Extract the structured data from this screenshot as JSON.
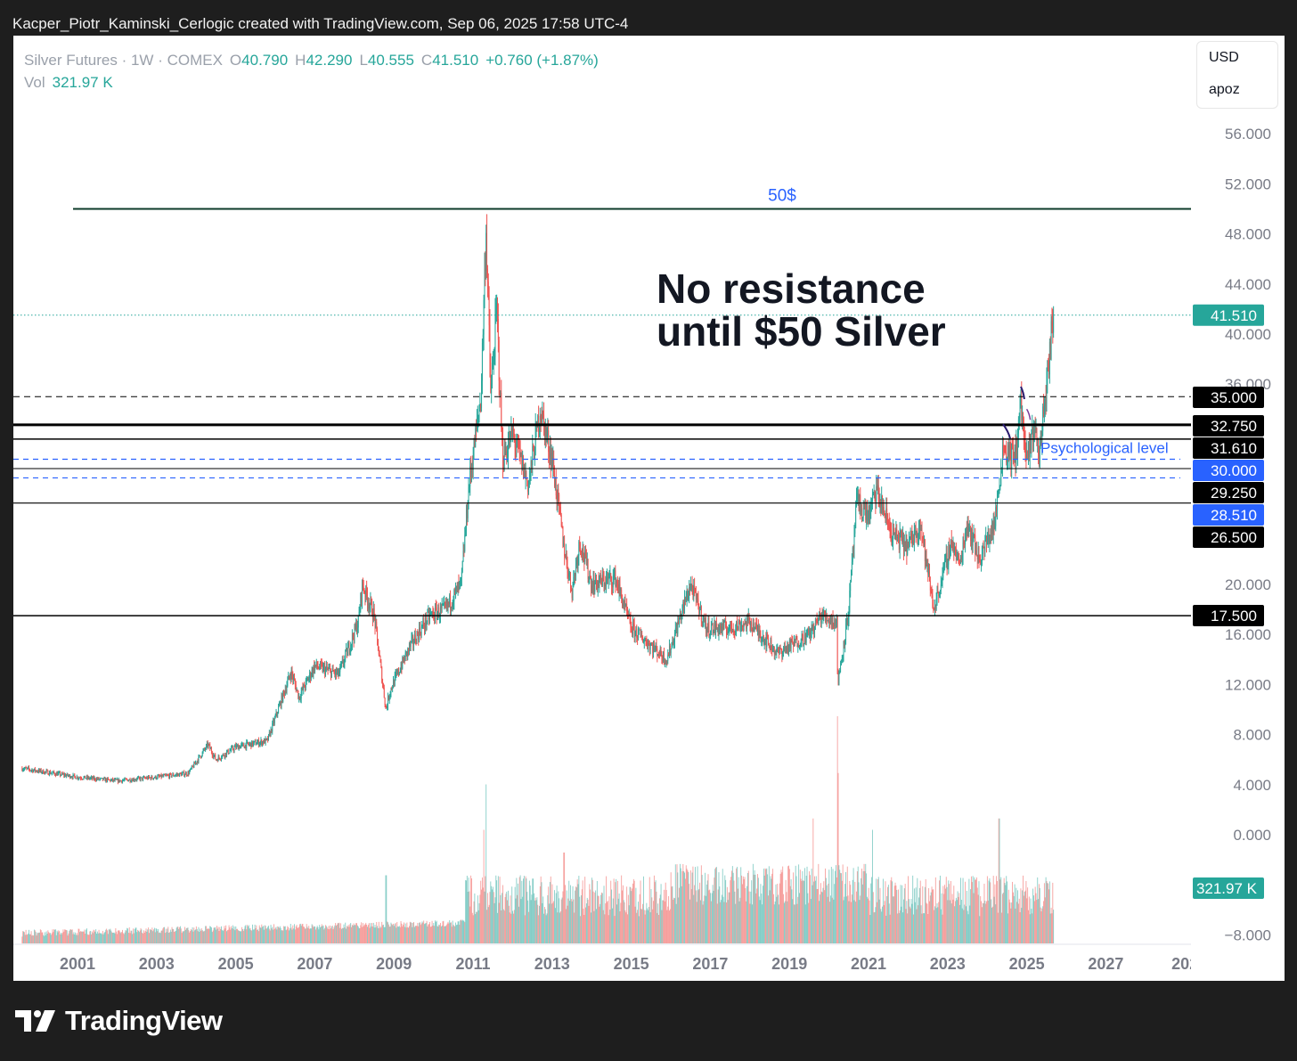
{
  "header": {
    "caption": "Kacper_Piotr_Kaminski_Cerlogic created with TradingView.com, Sep 06, 2025 17:58 UTC-4"
  },
  "legend": {
    "symbol": "Silver Futures · 1W · COMEX",
    "o_label": "O",
    "o_value": "40.790",
    "h_label": "H",
    "h_value": "42.290",
    "l_label": "L",
    "l_value": "40.555",
    "c_label": "C",
    "c_value": "41.510",
    "change": "+0.760 (+1.87%)",
    "vol_label": "Vol",
    "vol_value": "321.97 K"
  },
  "currency_box": {
    "currency": "USD",
    "scale": "apoz"
  },
  "footer": {
    "brand": "TradingView",
    "logo_icon": "tradingview-logo-icon"
  },
  "colors": {
    "up": "#26a69a",
    "down": "#ef5350",
    "label_black": "#000000",
    "label_blue": "#2962ff",
    "resistance": "#0d3b2a"
  },
  "chart_data": {
    "type": "candlestick",
    "series_name": "Silver Futures",
    "timeframe": "1W",
    "ylim": [
      -9.6,
      58.3
    ],
    "xlim": [
      1999.6,
      2026.9
    ],
    "y_ticks": [
      "56.000",
      "52.000",
      "48.000",
      "44.000",
      "40.000",
      "36.000",
      "20.000",
      "16.000",
      "12.000",
      "8.000",
      "4.000",
      "0.000",
      "−8.000"
    ],
    "x_ticks": [
      "2001",
      "2003",
      "2005",
      "2007",
      "2009",
      "2011",
      "2013",
      "2015",
      "2017",
      "2019",
      "2021",
      "2023",
      "2025",
      "2027",
      "202"
    ],
    "price_anchors": [
      {
        "x": 1999.6,
        "y": 5.3
      },
      {
        "x": 2001.0,
        "y": 4.6
      },
      {
        "x": 2002.0,
        "y": 4.3
      },
      {
        "x": 2003.0,
        "y": 4.6
      },
      {
        "x": 2003.8,
        "y": 4.9
      },
      {
        "x": 2004.3,
        "y": 7.2
      },
      {
        "x": 2004.5,
        "y": 6.0
      },
      {
        "x": 2005.0,
        "y": 7.0
      },
      {
        "x": 2005.8,
        "y": 7.5
      },
      {
        "x": 2006.4,
        "y": 13.0
      },
      {
        "x": 2006.6,
        "y": 11.0
      },
      {
        "x": 2007.0,
        "y": 13.5
      },
      {
        "x": 2007.6,
        "y": 12.8
      },
      {
        "x": 2008.1,
        "y": 17.0
      },
      {
        "x": 2008.2,
        "y": 20.0
      },
      {
        "x": 2008.5,
        "y": 17.5
      },
      {
        "x": 2008.8,
        "y": 10.0
      },
      {
        "x": 2008.9,
        "y": 11.5
      },
      {
        "x": 2009.4,
        "y": 15.0
      },
      {
        "x": 2009.9,
        "y": 17.5
      },
      {
        "x": 2010.3,
        "y": 18.0
      },
      {
        "x": 2010.7,
        "y": 20.0
      },
      {
        "x": 2010.9,
        "y": 28.0
      },
      {
        "x": 2011.2,
        "y": 35.0
      },
      {
        "x": 2011.33,
        "y": 48.5
      },
      {
        "x": 2011.45,
        "y": 35.0
      },
      {
        "x": 2011.6,
        "y": 42.0
      },
      {
        "x": 2011.75,
        "y": 30.0
      },
      {
        "x": 2012.0,
        "y": 32.0
      },
      {
        "x": 2012.4,
        "y": 28.0
      },
      {
        "x": 2012.7,
        "y": 34.0
      },
      {
        "x": 2013.0,
        "y": 30.0
      },
      {
        "x": 2013.3,
        "y": 23.0
      },
      {
        "x": 2013.5,
        "y": 19.5
      },
      {
        "x": 2013.7,
        "y": 23.5
      },
      {
        "x": 2014.0,
        "y": 20.0
      },
      {
        "x": 2014.6,
        "y": 20.5
      },
      {
        "x": 2015.0,
        "y": 16.5
      },
      {
        "x": 2015.9,
        "y": 14.0
      },
      {
        "x": 2016.5,
        "y": 20.0
      },
      {
        "x": 2016.9,
        "y": 16.5
      },
      {
        "x": 2017.5,
        "y": 16.5
      },
      {
        "x": 2018.0,
        "y": 17.0
      },
      {
        "x": 2018.7,
        "y": 14.5
      },
      {
        "x": 2019.5,
        "y": 16.0
      },
      {
        "x": 2019.8,
        "y": 17.5
      },
      {
        "x": 2020.2,
        "y": 17.0
      },
      {
        "x": 2020.22,
        "y": 12.0
      },
      {
        "x": 2020.5,
        "y": 18.0
      },
      {
        "x": 2020.7,
        "y": 26.5
      },
      {
        "x": 2021.0,
        "y": 25.5
      },
      {
        "x": 2021.2,
        "y": 27.5
      },
      {
        "x": 2021.6,
        "y": 24.0
      },
      {
        "x": 2022.0,
        "y": 23.0
      },
      {
        "x": 2022.3,
        "y": 25.0
      },
      {
        "x": 2022.65,
        "y": 18.0
      },
      {
        "x": 2023.1,
        "y": 23.5
      },
      {
        "x": 2023.3,
        "y": 21.5
      },
      {
        "x": 2023.5,
        "y": 25.0
      },
      {
        "x": 2023.8,
        "y": 22.0
      },
      {
        "x": 2024.2,
        "y": 25.0
      },
      {
        "x": 2024.4,
        "y": 31.0
      },
      {
        "x": 2024.7,
        "y": 30.0
      },
      {
        "x": 2024.85,
        "y": 34.5
      },
      {
        "x": 2025.0,
        "y": 29.5
      },
      {
        "x": 2025.2,
        "y": 33.0
      },
      {
        "x": 2025.3,
        "y": 30.0
      },
      {
        "x": 2025.5,
        "y": 36.0
      },
      {
        "x": 2025.68,
        "y": 41.51
      }
    ],
    "volume_spikes": [
      {
        "x": 2011.33,
        "h": 0.7
      },
      {
        "x": 2011.28,
        "h": 0.5
      },
      {
        "x": 2019.6,
        "h": 0.55
      },
      {
        "x": 2020.22,
        "h": 1.0
      },
      {
        "x": 2020.24,
        "h": 0.75
      },
      {
        "x": 2021.1,
        "h": 0.5
      },
      {
        "x": 2024.3,
        "h": 0.55
      },
      {
        "x": 2013.3,
        "h": 0.4
      },
      {
        "x": 2008.8,
        "h": 0.3
      }
    ],
    "horizontal_lines": [
      {
        "y": 50.0,
        "style": "solid",
        "color": "#0d3b2a",
        "width": 2,
        "label": "50$",
        "label_color": "#2962ff"
      },
      {
        "y": 35.0,
        "style": "dashed",
        "color": "#000000",
        "width": 1,
        "tag": "35.000",
        "tag_bg": "#000000"
      },
      {
        "y": 32.75,
        "style": "solid",
        "color": "#000000",
        "width": 3,
        "tag": "32.750",
        "tag_bg": "#000000"
      },
      {
        "y": 31.61,
        "style": "solid",
        "color": "#000000",
        "width": 1.5,
        "tag": "31.610",
        "tag_bg": "#000000"
      },
      {
        "y": 30.0,
        "style": "dashed",
        "color": "#2962ff",
        "width": 1.2,
        "tag": "30.000",
        "tag_bg": "#2962ff",
        "label": "Psychological level"
      },
      {
        "y": 29.25,
        "style": "solid",
        "color": "#000000",
        "width": 1,
        "tag": "29.250",
        "tag_bg": "#000000"
      },
      {
        "y": 28.51,
        "style": "dashed",
        "color": "#2962ff",
        "width": 1.2,
        "tag": "28.510",
        "tag_bg": "#2962ff"
      },
      {
        "y": 26.5,
        "style": "solid",
        "color": "#000000",
        "width": 1.2,
        "tag": "26.500",
        "tag_bg": "#000000"
      },
      {
        "y": 17.5,
        "style": "solid",
        "color": "#000000",
        "width": 1.5,
        "tag": "17.500",
        "tag_bg": "#000000"
      }
    ],
    "last_price": {
      "value": 41.51,
      "tag": "41.510",
      "color": "#26a69a"
    },
    "last_volume_tag": "321.97 K",
    "annotation": {
      "lines": [
        "No resistance",
        "until $50 Silver"
      ]
    }
  }
}
